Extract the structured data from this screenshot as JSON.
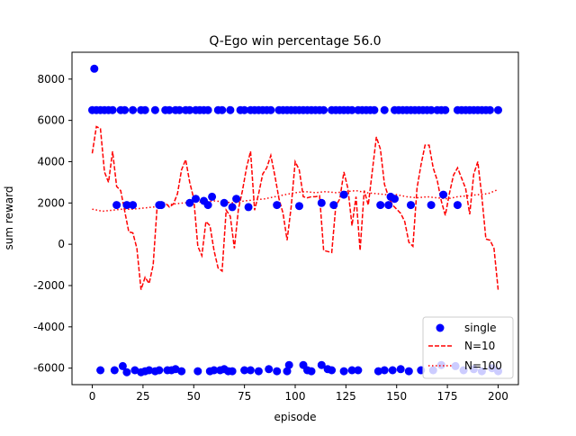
{
  "chart_data": {
    "type": "scatter",
    "title": "Q-Ego win percentage  56.0",
    "xlabel": "episode",
    "ylabel": "sum reward",
    "xlim": [
      -10,
      210
    ],
    "ylim": [
      -6800,
      9300
    ],
    "grid": false,
    "legend_position": "lower right",
    "x_ticks": [
      0,
      25,
      50,
      75,
      100,
      125,
      150,
      175,
      200
    ],
    "y_ticks": [
      -6000,
      -4000,
      -2000,
      0,
      2000,
      4000,
      6000,
      8000
    ],
    "series": [
      {
        "name": "single",
        "kind": "scatter",
        "color": "#0000ff",
        "points": [
          [
            1,
            8500
          ],
          [
            0,
            6500
          ],
          [
            2,
            6500
          ],
          [
            4,
            6500
          ],
          [
            6,
            6500
          ],
          [
            8,
            6500
          ],
          [
            10,
            6500
          ],
          [
            14,
            6500
          ],
          [
            16,
            6500
          ],
          [
            20,
            6500
          ],
          [
            24,
            6500
          ],
          [
            26,
            6500
          ],
          [
            31,
            6500
          ],
          [
            36,
            6500
          ],
          [
            38,
            6500
          ],
          [
            41,
            6500
          ],
          [
            43,
            6500
          ],
          [
            46,
            6500
          ],
          [
            48,
            6500
          ],
          [
            51,
            6500
          ],
          [
            53,
            6500
          ],
          [
            55,
            6500
          ],
          [
            57,
            6500
          ],
          [
            62,
            6500
          ],
          [
            64,
            6500
          ],
          [
            68,
            6500
          ],
          [
            73,
            6500
          ],
          [
            75,
            6500
          ],
          [
            78,
            6500
          ],
          [
            80,
            6500
          ],
          [
            82,
            6500
          ],
          [
            84,
            6500
          ],
          [
            86,
            6500
          ],
          [
            88,
            6500
          ],
          [
            92,
            6500
          ],
          [
            94,
            6500
          ],
          [
            96,
            6500
          ],
          [
            98,
            6500
          ],
          [
            100,
            6500
          ],
          [
            102,
            6500
          ],
          [
            104,
            6500
          ],
          [
            106,
            6500
          ],
          [
            108,
            6500
          ],
          [
            110,
            6500
          ],
          [
            112,
            6500
          ],
          [
            114,
            6500
          ],
          [
            118,
            6500
          ],
          [
            120,
            6500
          ],
          [
            122,
            6500
          ],
          [
            124,
            6500
          ],
          [
            126,
            6500
          ],
          [
            128,
            6500
          ],
          [
            131,
            6500
          ],
          [
            133,
            6500
          ],
          [
            135,
            6500
          ],
          [
            137,
            6500
          ],
          [
            139,
            6500
          ],
          [
            144,
            6500
          ],
          [
            149,
            6500
          ],
          [
            151,
            6500
          ],
          [
            153,
            6500
          ],
          [
            155,
            6500
          ],
          [
            157,
            6500
          ],
          [
            159,
            6500
          ],
          [
            161,
            6500
          ],
          [
            163,
            6500
          ],
          [
            165,
            6500
          ],
          [
            167,
            6500
          ],
          [
            170,
            6500
          ],
          [
            172,
            6500
          ],
          [
            174,
            6500
          ],
          [
            180,
            6500
          ],
          [
            182,
            6500
          ],
          [
            184,
            6500
          ],
          [
            186,
            6500
          ],
          [
            188,
            6500
          ],
          [
            190,
            6500
          ],
          [
            192,
            6500
          ],
          [
            194,
            6500
          ],
          [
            196,
            6500
          ],
          [
            200,
            6500
          ],
          [
            12,
            1900
          ],
          [
            17,
            1900
          ],
          [
            20,
            1900
          ],
          [
            33,
            1900
          ],
          [
            34,
            1900
          ],
          [
            48,
            2000
          ],
          [
            51,
            2200
          ],
          [
            55,
            2100
          ],
          [
            57,
            1900
          ],
          [
            59,
            2300
          ],
          [
            65,
            2000
          ],
          [
            69,
            1800
          ],
          [
            71,
            2200
          ],
          [
            77,
            1800
          ],
          [
            91,
            1900
          ],
          [
            102,
            1850
          ],
          [
            113,
            2000
          ],
          [
            119,
            1900
          ],
          [
            124,
            2400
          ],
          [
            142,
            1900
          ],
          [
            146,
            1900
          ],
          [
            147,
            2300
          ],
          [
            149,
            2200
          ],
          [
            157,
            1900
          ],
          [
            167,
            1900
          ],
          [
            173,
            2400
          ],
          [
            180,
            1900
          ],
          [
            4,
            -6100
          ],
          [
            11,
            -6100
          ],
          [
            15,
            -5900
          ],
          [
            17,
            -6200
          ],
          [
            21,
            -6100
          ],
          [
            24,
            -6200
          ],
          [
            26,
            -6150
          ],
          [
            28,
            -6100
          ],
          [
            31,
            -6150
          ],
          [
            33,
            -6100
          ],
          [
            37,
            -6100
          ],
          [
            39,
            -6100
          ],
          [
            41,
            -6050
          ],
          [
            44,
            -6150
          ],
          [
            52,
            -6150
          ],
          [
            58,
            -6150
          ],
          [
            60,
            -6100
          ],
          [
            63,
            -6100
          ],
          [
            65,
            -6050
          ],
          [
            67,
            -6150
          ],
          [
            69,
            -6150
          ],
          [
            75,
            -6100
          ],
          [
            78,
            -6100
          ],
          [
            82,
            -6150
          ],
          [
            87,
            -6050
          ],
          [
            91,
            -6150
          ],
          [
            96,
            -6150
          ],
          [
            97,
            -5850
          ],
          [
            104,
            -5850
          ],
          [
            106,
            -6100
          ],
          [
            108,
            -6150
          ],
          [
            113,
            -5850
          ],
          [
            116,
            -6050
          ],
          [
            118,
            -6100
          ],
          [
            124,
            -6150
          ],
          [
            128,
            -6100
          ],
          [
            131,
            -6100
          ],
          [
            141,
            -6150
          ],
          [
            144,
            -6100
          ],
          [
            148,
            -6100
          ],
          [
            152,
            -6050
          ],
          [
            156,
            -6150
          ],
          [
            162,
            -6100
          ],
          [
            168,
            -6100
          ],
          [
            172,
            -5850
          ],
          [
            179,
            -5900
          ],
          [
            183,
            -6100
          ],
          [
            188,
            -6050
          ],
          [
            192,
            -6150
          ],
          [
            197,
            -6000
          ],
          [
            200,
            -6150
          ]
        ]
      },
      {
        "name": "N=10",
        "kind": "line",
        "style": "dashed",
        "color": "#ff0000",
        "x": [
          0,
          2,
          4,
          6,
          8,
          10,
          12,
          14,
          16,
          18,
          20,
          22,
          24,
          26,
          28,
          30,
          32,
          34,
          36,
          38,
          40,
          42,
          44,
          46,
          48,
          50,
          52,
          54,
          56,
          58,
          60,
          62,
          64,
          66,
          68,
          70,
          72,
          74,
          76,
          78,
          80,
          82,
          84,
          86,
          88,
          90,
          92,
          94,
          96,
          98,
          100,
          102,
          104,
          106,
          108,
          110,
          112,
          114,
          116,
          118,
          120,
          122,
          124,
          126,
          128,
          130,
          132,
          134,
          136,
          138,
          140,
          142,
          144,
          146,
          148,
          150,
          152,
          154,
          156,
          158,
          160,
          162,
          164,
          166,
          168,
          170,
          172,
          174,
          176,
          178,
          180,
          182,
          184,
          186,
          188,
          190,
          192,
          194,
          196,
          198,
          200
        ],
        "y": [
          4400,
          5700,
          5600,
          3500,
          3000,
          4500,
          2800,
          2600,
          1600,
          600,
          550,
          -200,
          -2200,
          -1600,
          -1900,
          -1000,
          1900,
          2000,
          2000,
          1800,
          1950,
          2450,
          3600,
          4100,
          3000,
          2200,
          -100,
          -550,
          1100,
          900,
          -300,
          -1150,
          -1300,
          1650,
          1350,
          -200,
          1700,
          2600,
          3700,
          4500,
          1650,
          2450,
          3400,
          3700,
          4300,
          3300,
          2200,
          1500,
          200,
          1800,
          4000,
          3600,
          2300,
          2250,
          2300,
          2300,
          2350,
          -300,
          -350,
          -400,
          1850,
          2200,
          3500,
          2700,
          900,
          2300,
          -300,
          2600,
          1900,
          3550,
          5200,
          4600,
          2900,
          2300,
          1900,
          1700,
          1500,
          1100,
          100,
          -100,
          2700,
          3850,
          4800,
          4800,
          3700,
          3100,
          2100,
          1400,
          2450,
          3350,
          3700,
          3200,
          2700,
          1450,
          3400,
          4000,
          2300,
          250,
          200,
          -200,
          -2200
        ]
      },
      {
        "name": "N=100",
        "kind": "line",
        "style": "dotted",
        "color": "#ff0000",
        "x": [
          0,
          5,
          10,
          15,
          20,
          25,
          30,
          35,
          40,
          45,
          50,
          55,
          60,
          65,
          70,
          75,
          80,
          85,
          90,
          95,
          100,
          105,
          110,
          115,
          120,
          125,
          130,
          135,
          140,
          145,
          150,
          155,
          160,
          165,
          170,
          175,
          180,
          185,
          190,
          195,
          200
        ],
        "y": [
          1700,
          1600,
          1650,
          1700,
          1700,
          1750,
          1800,
          1850,
          1950,
          2000,
          2050,
          2050,
          2100,
          2050,
          2000,
          2100,
          2150,
          2200,
          2300,
          2400,
          2500,
          2550,
          2500,
          2550,
          2500,
          2550,
          2600,
          2500,
          2450,
          2400,
          2400,
          2300,
          2250,
          2300,
          2250,
          2200,
          2300,
          2350,
          2400,
          2450,
          2650
        ]
      }
    ]
  }
}
